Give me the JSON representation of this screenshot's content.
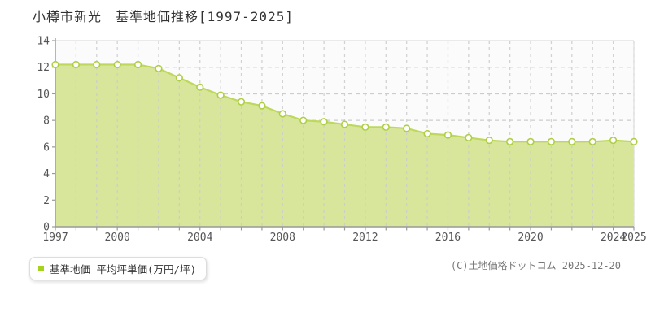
{
  "title": "小樽市新光　基準地価推移[1997-2025]",
  "legend": {
    "label": "基準地価 平均坪単価(万円/坪)",
    "marker_color": "#a5d21d"
  },
  "footer": {
    "copyright": "(C)土地価格ドットコム 2025-12-20"
  },
  "chart_data": {
    "type": "area",
    "title": "小樽市新光 基準地価推移[1997-2025]",
    "x": [
      1997,
      1998,
      1999,
      2000,
      2001,
      2002,
      2003,
      2004,
      2005,
      2006,
      2007,
      2008,
      2009,
      2010,
      2011,
      2012,
      2013,
      2014,
      2015,
      2016,
      2017,
      2018,
      2019,
      2020,
      2021,
      2022,
      2023,
      2024,
      2025
    ],
    "series": [
      {
        "name": "基準地価 平均坪単価(万円/坪)",
        "values": [
          12.2,
          12.2,
          12.2,
          12.2,
          12.2,
          11.9,
          11.2,
          10.5,
          9.9,
          9.4,
          9.1,
          8.5,
          8.0,
          7.9,
          7.7,
          7.5,
          7.5,
          7.4,
          7.0,
          6.9,
          6.7,
          6.5,
          6.4,
          6.4,
          6.4,
          6.4,
          6.4,
          6.5,
          6.4
        ]
      }
    ],
    "xlabel": "",
    "ylabel": "",
    "ylim": [
      0,
      14
    ],
    "ytick_step": 2,
    "xticks_labeled": [
      1997,
      2000,
      2004,
      2008,
      2012,
      2016,
      2020,
      2024,
      2025
    ],
    "grid": true,
    "legend_position": "bottom-left",
    "colors": {
      "area_fill": "#d8e69b",
      "line": "#bdd85c",
      "marker_fill": "#ffffff",
      "marker_stroke": "#aecf45",
      "grid": "#cccccc",
      "plot_border": "#dddddd",
      "axis": "#999999",
      "plot_bg": "#fbfbfb",
      "tick_text": "#555555"
    }
  }
}
